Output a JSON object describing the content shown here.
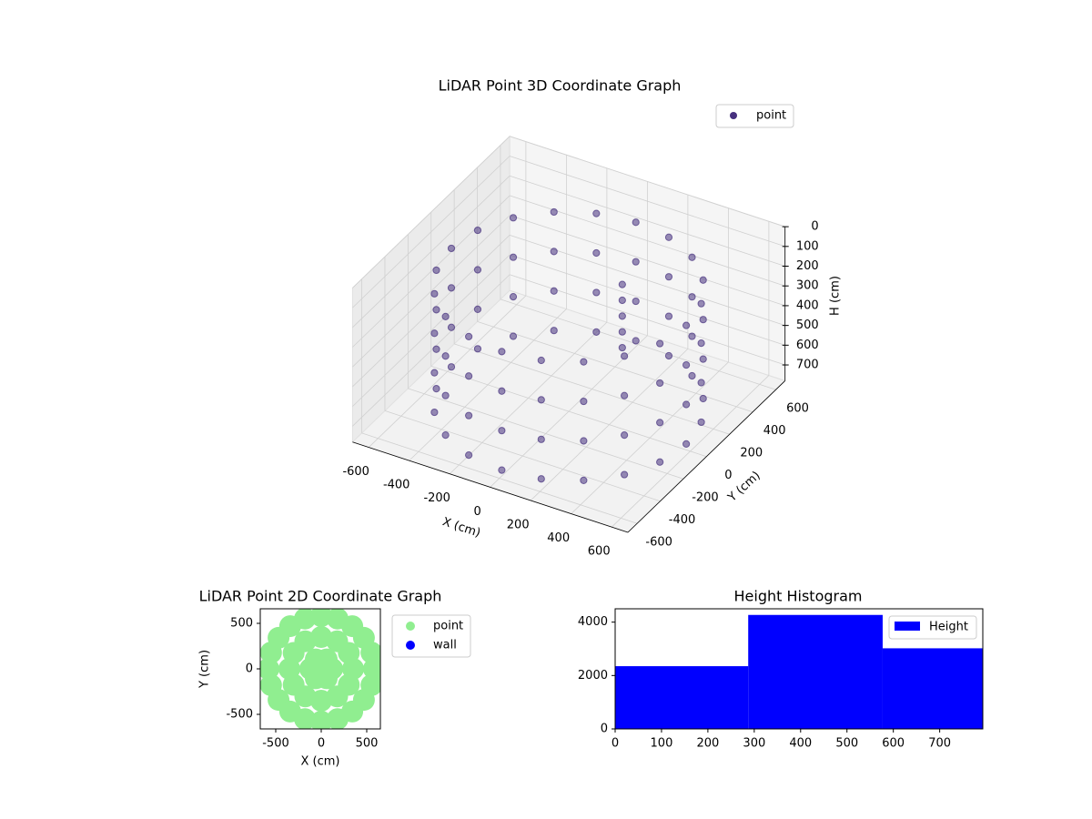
{
  "chart_data": [
    {
      "type": "scatter3d",
      "title": "LiDAR Point 3D Coordinate Graph",
      "xlabel": "X (cm)",
      "ylabel": "Y (cm)",
      "zlabel": "H (cm)",
      "xlim": [
        -680,
        680
      ],
      "ylim": [
        -680,
        680
      ],
      "zlim": [
        780,
        0
      ],
      "xticks": [
        -600,
        -400,
        -200,
        0,
        200,
        400,
        600
      ],
      "yticks": [
        -600,
        -400,
        -200,
        0,
        200,
        400,
        600
      ],
      "zticks": [
        0,
        100,
        200,
        300,
        400,
        500,
        600,
        700
      ],
      "grid": true,
      "legend": "upper right",
      "series": [
        {
          "name": "point",
          "color": "#46307e",
          "x": [
            580,
            552,
            469,
            341,
            179,
            0,
            -179,
            -341,
            -469,
            -552,
            -580,
            -552,
            -469,
            -341,
            -179,
            0,
            179,
            341,
            469,
            552,
            580,
            552,
            469,
            341,
            179,
            0,
            -179,
            -341,
            -469,
            -552,
            -580,
            -552,
            -469,
            -341,
            -179,
            0,
            179,
            341,
            469,
            552,
            580,
            552,
            469,
            341,
            179,
            0,
            -179,
            -341,
            -469,
            -552,
            -580,
            -552,
            -469,
            -341,
            -179,
            0,
            179,
            341,
            469,
            552,
            580,
            552,
            469,
            341,
            179,
            0,
            -179,
            -341,
            -469,
            -552,
            -580,
            -552,
            -469,
            -341,
            -179,
            0,
            179,
            341,
            469,
            552,
            150,
            150,
            150,
            150,
            150
          ],
          "y": [
            0,
            179,
            341,
            469,
            552,
            580,
            552,
            469,
            341,
            179,
            0,
            -179,
            -341,
            -469,
            -552,
            -580,
            -552,
            -469,
            -341,
            -179,
            0,
            179,
            341,
            469,
            552,
            580,
            552,
            469,
            341,
            179,
            0,
            -179,
            -341,
            -469,
            -552,
            -580,
            -552,
            -469,
            -341,
            -179,
            0,
            179,
            341,
            469,
            552,
            580,
            552,
            469,
            341,
            179,
            0,
            -179,
            -341,
            -469,
            -552,
            -580,
            -552,
            -469,
            -341,
            -179,
            0,
            179,
            341,
            469,
            552,
            580,
            552,
            469,
            341,
            179,
            0,
            -179,
            -341,
            -469,
            -552,
            -580,
            -552,
            -469,
            -341,
            -179,
            200,
            200,
            200,
            200,
            200
          ],
          "z": [
            150,
            150,
            150,
            150,
            150,
            150,
            150,
            150,
            150,
            150,
            150,
            150,
            150,
            150,
            150,
            150,
            150,
            150,
            150,
            150,
            350,
            350,
            350,
            350,
            350,
            350,
            350,
            350,
            350,
            350,
            350,
            350,
            350,
            350,
            350,
            350,
            350,
            350,
            350,
            350,
            550,
            550,
            550,
            550,
            550,
            550,
            550,
            550,
            550,
            550,
            550,
            550,
            550,
            550,
            550,
            550,
            550,
            550,
            550,
            550,
            750,
            750,
            750,
            750,
            750,
            750,
            750,
            750,
            750,
            750,
            750,
            750,
            750,
            750,
            750,
            750,
            750,
            750,
            750,
            750,
            200,
            280,
            360,
            440,
            520
          ]
        }
      ]
    },
    {
      "type": "scatter",
      "title": "LiDAR Point 2D Coordinate Graph",
      "xlabel": "X (cm)",
      "ylabel": "Y (cm)",
      "xlim": [
        -670,
        650
      ],
      "ylim": [
        -660,
        660
      ],
      "xticks": [
        -500,
        0,
        500
      ],
      "yticks": [
        -500,
        0,
        500
      ],
      "legend": "outside right",
      "series": [
        {
          "name": "point",
          "color": "#90ee90",
          "x": [
            580,
            552,
            469,
            341,
            179,
            0,
            -179,
            -341,
            -469,
            -552,
            -580,
            -552,
            -469,
            -341,
            -179,
            0,
            179,
            341,
            469,
            552,
            350,
            303,
            175,
            0,
            -175,
            -303,
            -350,
            -303,
            -175,
            0,
            175,
            303,
            120,
            60,
            -60,
            -120,
            -60,
            60,
            0
          ],
          "y": [
            0,
            179,
            341,
            469,
            552,
            580,
            552,
            469,
            341,
            179,
            0,
            -179,
            -341,
            -469,
            -552,
            -580,
            -552,
            -469,
            -341,
            -179,
            0,
            175,
            303,
            350,
            303,
            175,
            0,
            -175,
            -303,
            -350,
            -303,
            -175,
            0,
            104,
            104,
            0,
            -104,
            -104,
            0
          ]
        },
        {
          "name": "wall",
          "color": "#0000ff",
          "x": [],
          "y": []
        }
      ]
    },
    {
      "type": "histogram",
      "title": "Height Histogram",
      "bins": [
        0,
        287,
        577,
        793
      ],
      "xlim": [
        0,
        793
      ],
      "ylim": [
        0,
        4500
      ],
      "xticks": [
        0,
        100,
        200,
        300,
        400,
        500,
        600,
        700
      ],
      "yticks": [
        0,
        2000,
        4000
      ],
      "legend": "upper right",
      "series": [
        {
          "name": "Height",
          "color": "#0000ff",
          "values": [
            2350,
            4270,
            3020
          ]
        }
      ]
    }
  ]
}
